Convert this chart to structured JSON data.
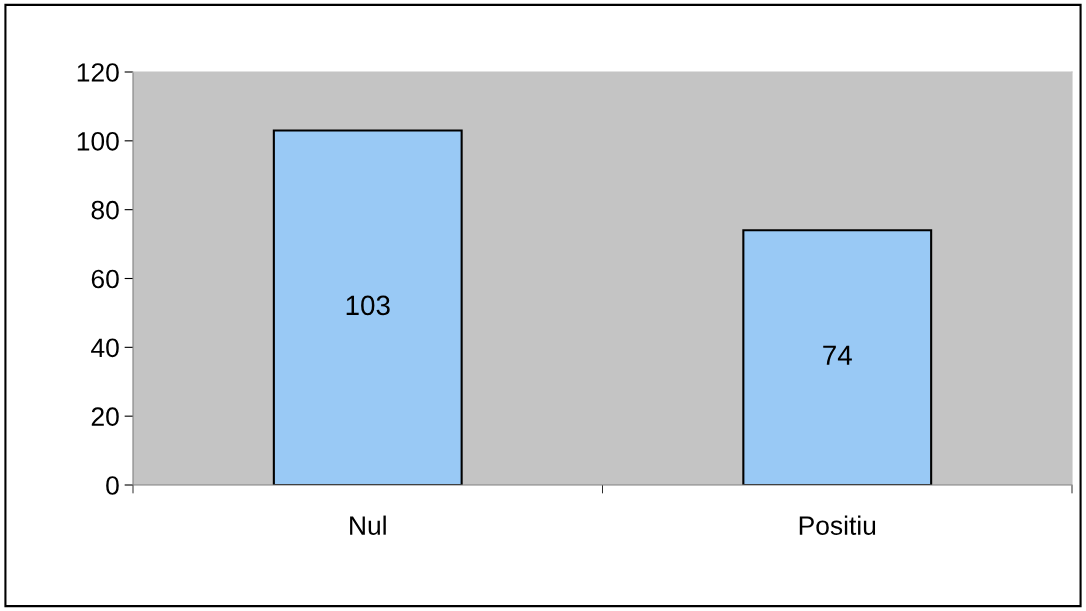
{
  "chart_data": {
    "type": "bar",
    "categories": [
      "Nul",
      "Positiu"
    ],
    "values": [
      103,
      74
    ],
    "color": "#99c9f5",
    "ylim": [
      0,
      120
    ],
    "yticks": [
      0,
      20,
      40,
      60,
      80,
      100,
      120
    ],
    "grid": false,
    "data_labels": true
  }
}
